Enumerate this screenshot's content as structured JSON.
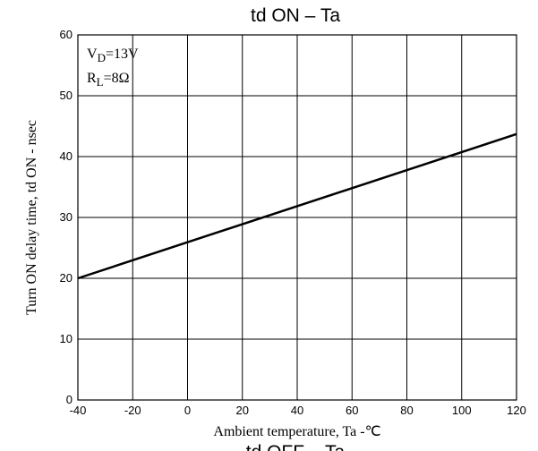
{
  "chart_data": {
    "type": "line",
    "title": "td ON  –  Ta",
    "x": [
      -40,
      120
    ],
    "series": [
      {
        "name": "td ON",
        "color": "#000000",
        "values": [
          20,
          43.7
        ]
      }
    ],
    "xlim": [
      -40,
      120
    ],
    "xticks": [
      -40,
      -20,
      0,
      20,
      40,
      60,
      80,
      100,
      120
    ],
    "ylim": [
      0,
      60
    ],
    "yticks": [
      0,
      10,
      20,
      30,
      40,
      50,
      60
    ],
    "grid": true,
    "x_label": "Ambient temperature, Ta  -℃",
    "y_label": "Turn ON delay time, td ON - nsec",
    "annotations": [
      {
        "main": "V",
        "sub": "D",
        "tail": "=13V"
      },
      {
        "main": "R",
        "sub": "L",
        "tail": "=8Ω"
      }
    ],
    "next_title": "td OFF  –  Ta"
  }
}
